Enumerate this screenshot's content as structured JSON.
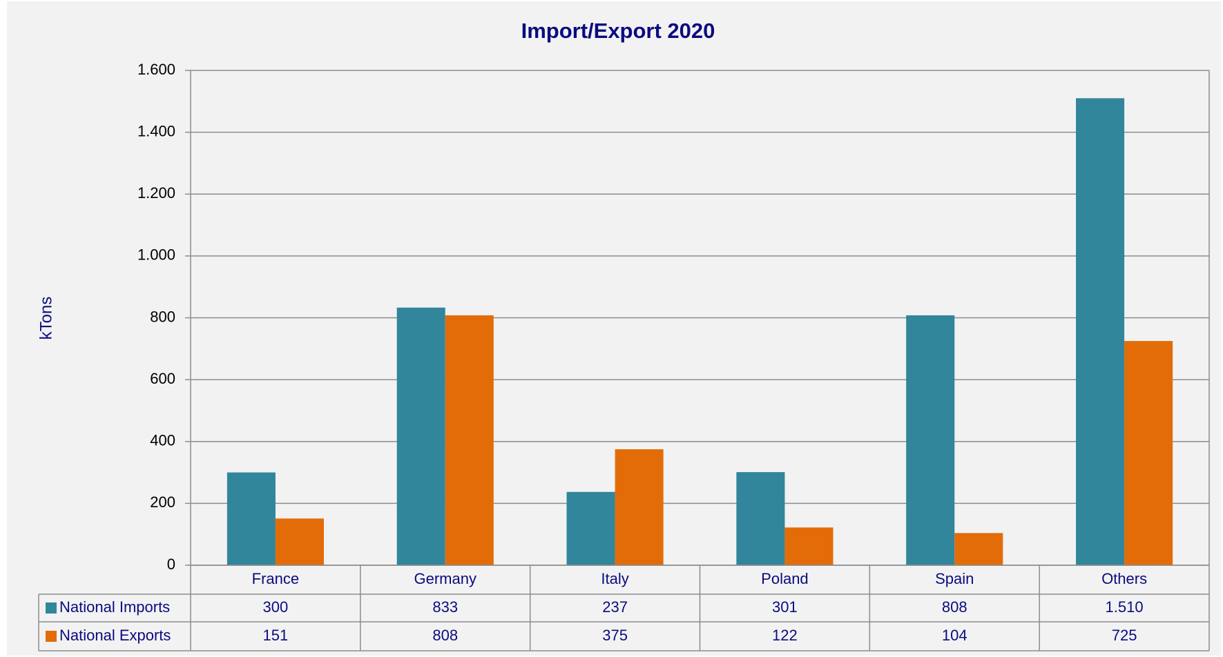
{
  "chart_data": {
    "type": "bar",
    "title": "Import/Export 2020",
    "y_label": "kTons",
    "categories": [
      "France",
      "Germany",
      "Italy",
      "Poland",
      "Spain",
      "Others"
    ],
    "series": [
      {
        "name": "National Imports",
        "color": "#31869b",
        "values": [
          300,
          833,
          237,
          301,
          808,
          1510
        ],
        "value_labels": [
          "300",
          "833",
          "237",
          "301",
          "808",
          "1.510"
        ]
      },
      {
        "name": "National Exports",
        "color": "#e36c09",
        "values": [
          151,
          808,
          375,
          122,
          104,
          725
        ]
      }
    ],
    "ylim": [
      0,
      1600
    ],
    "yticks": [
      0,
      200,
      400,
      600,
      800,
      {
        "value": 1000,
        "label": "1.000"
      },
      {
        "value": 1200,
        "label": "1.200"
      },
      {
        "value": 1400,
        "label": "1.400"
      },
      {
        "value": 1600,
        "label": "1.600"
      }
    ],
    "grid": true,
    "data_table": true
  }
}
